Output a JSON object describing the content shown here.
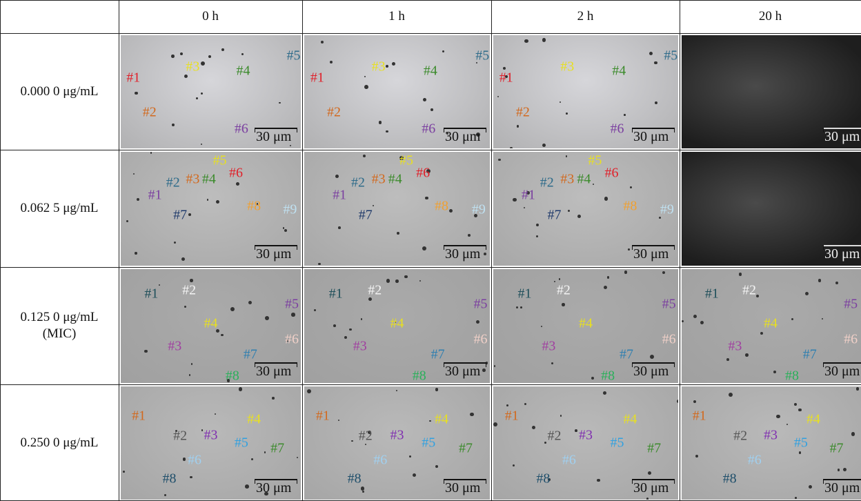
{
  "header": {
    "columns": [
      "0 h",
      "1 h",
      "2 h",
      "20 h"
    ]
  },
  "rows": [
    {
      "label": [
        "0.000 0 μg/mL"
      ],
      "label_colors": [
        "#e0202a",
        "#d2691e",
        "#e8e020",
        "#3a8a2a",
        "#2e6b8a",
        "#7b3fa0"
      ],
      "panels": [
        {
          "labels": [
            "#1",
            "#2",
            "#3",
            "#4",
            "#5",
            "#6"
          ],
          "scale": "30 μm"
        },
        {
          "labels": [
            "#1",
            "#2",
            "#3",
            "#4",
            "#5",
            "#6"
          ],
          "scale": "30 μm"
        },
        {
          "labels": [
            "#1",
            "#2",
            "#3",
            "#4",
            "#5",
            "#6"
          ],
          "scale": "30 μm"
        },
        {
          "labels": [],
          "scale": "30 μm"
        }
      ]
    },
    {
      "label": [
        "0.062 5 μg/mL"
      ],
      "label_colors": [
        "#7b3fa0",
        "#2e6b8a",
        "#d2691e",
        "#3a8a2a",
        "#e8e020",
        "#e0202a",
        "#1f3a6b",
        "#f0a030",
        "#bfe0f0"
      ],
      "panels": [
        {
          "labels": [
            "#1",
            "#2",
            "#3",
            "#4",
            "#5",
            "#6",
            "#7",
            "#8",
            "#9"
          ],
          "scale": "30 μm"
        },
        {
          "labels": [
            "#1",
            "#2",
            "#3",
            "#4",
            "#5",
            "#6",
            "#7",
            "#8",
            "#9"
          ],
          "scale": "30 μm"
        },
        {
          "labels": [
            "#1",
            "#2",
            "#3",
            "#4",
            "#5",
            "#6",
            "#7",
            "#8",
            "#9"
          ],
          "scale": "30 μm"
        },
        {
          "labels": [],
          "scale": "30 μm"
        }
      ]
    },
    {
      "label": [
        "0.125 0 μg/mL",
        "(MIC)"
      ],
      "label_colors": [
        "#1f4f5a",
        "#f4f4f4",
        "#a040a0",
        "#e8e020",
        "#7b3fa0",
        "#f0d0c8",
        "#2f7fb0",
        "#2ab05a"
      ],
      "panels": [
        {
          "labels": [
            "#1",
            "#2",
            "#3",
            "#4",
            "#5",
            "#6",
            "#7",
            "#8"
          ],
          "scale": "30 μm"
        },
        {
          "labels": [
            "#1",
            "#2",
            "#3",
            "#4",
            "#5",
            "#6",
            "#7",
            "#8"
          ],
          "scale": "30 μm"
        },
        {
          "labels": [
            "#1",
            "#2",
            "#3",
            "#4",
            "#5",
            "#6",
            "#7",
            "#8"
          ],
          "scale": "30 μm"
        },
        {
          "labels": [
            "#1",
            "#2",
            "#3",
            "#4",
            "#5",
            "#6",
            "#7",
            "#8"
          ],
          "scale": "30 μm"
        }
      ]
    },
    {
      "label": [
        "0.250 0 μg/mL"
      ],
      "label_colors": [
        "#d2691e",
        "#555555",
        "#8030b0",
        "#e8e020",
        "#30a0e0",
        "#a0d0f0",
        "#3a8a2a",
        "#1f4f6b"
      ],
      "panels": [
        {
          "labels": [
            "#1",
            "#2",
            "#3",
            "#4",
            "#5",
            "#6",
            "#7",
            "#8"
          ],
          "scale": "30 μm"
        },
        {
          "labels": [
            "#1",
            "#2",
            "#3",
            "#4",
            "#5",
            "#6",
            "#7",
            "#8"
          ],
          "scale": "30 μm"
        },
        {
          "labels": [
            "#1",
            "#2",
            "#3",
            "#4",
            "#5",
            "#6",
            "#7",
            "#8"
          ],
          "scale": "30 μm"
        },
        {
          "labels": [
            "#1",
            "#2",
            "#3",
            "#4",
            "#5",
            "#6",
            "#7",
            "#8"
          ],
          "scale": "30 μm"
        }
      ]
    }
  ]
}
